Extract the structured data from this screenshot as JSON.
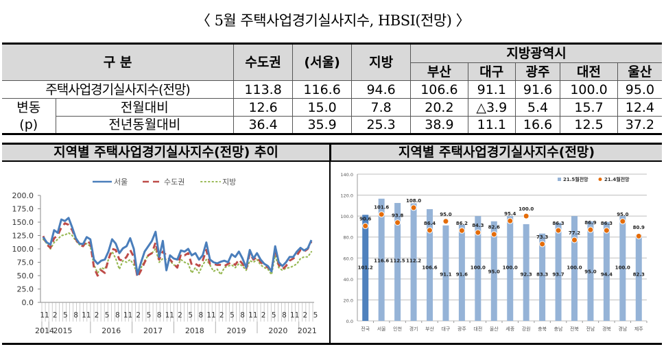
{
  "title": "〈 5월 주택사업경기실사지수, HBSI(전망) 〉",
  "table": {
    "header": {
      "category": "구    분",
      "sudo": "수도권",
      "seoul": "(서울)",
      "jibang": "지방",
      "metro_group": "지방광역시",
      "metros": [
        "부산",
        "대구",
        "광주",
        "대전",
        "울산"
      ]
    },
    "rows": [
      {
        "label": "주택사업경기실사지수(전망)",
        "values": [
          "113.8",
          "116.6",
          "94.6",
          "106.6",
          "91.1",
          "91.6",
          "100.0",
          "95.0"
        ]
      },
      {
        "group": "변동",
        "label": "전월대비",
        "values": [
          "12.6",
          "15.0",
          "7.8",
          "20.2",
          "△3.9",
          "5.4",
          "15.7",
          "12.4"
        ]
      },
      {
        "group": "(p)",
        "label": "전년동월대비",
        "values": [
          "36.4",
          "35.9",
          "25.3",
          "38.9",
          "11.1",
          "16.6",
          "12.5",
          "37.2"
        ]
      }
    ]
  },
  "colors": {
    "seoul_line": "#4a7ebb",
    "sudo_line": "#be4b48",
    "jibang_line": "#98b954",
    "bar_national": "#4f81bd",
    "bar_region": "#95b3d7",
    "dot_prev": "#e46c0a",
    "header_bg": "#d9d9d9"
  },
  "chart_data": [
    {
      "type": "line",
      "title": "지역별 주택사업경기실사지수(전망) 추이",
      "xlabel": "",
      "ylabel": "",
      "ylim": [
        0,
        200
      ],
      "yticks": [
        "0.0",
        "25.0",
        "50.0",
        "75.0",
        "100.0",
        "125.0",
        "150.0",
        "175.0",
        "200.0"
      ],
      "x_month_ticks": [
        "11",
        "2",
        "5",
        "8",
        "11",
        "2",
        "5",
        "8",
        "11",
        "2",
        "5",
        "8",
        "11",
        "2",
        "5",
        "8",
        "11",
        "2",
        "5",
        "8",
        "11",
        "2",
        "5",
        "8",
        "11",
        "2",
        "5"
      ],
      "x_year_labels": [
        "2014",
        "2015",
        "2016",
        "2017",
        "2018",
        "2019",
        "2020",
        "2021"
      ],
      "legend": [
        "서울",
        "수도권",
        "지방"
      ],
      "legend_position": "top",
      "grid": false,
      "series": [
        {
          "name": "서울",
          "style": "solid",
          "values": [
            122,
            112,
            108,
            135,
            130,
            155,
            152,
            158,
            140,
            120,
            110,
            109,
            122,
            118,
            80,
            72,
            78,
            80,
            95,
            118,
            110,
            92,
            101,
            105,
            120,
            100,
            52,
            75,
            95,
            105,
            115,
            132,
            85,
            115,
            60,
            88,
            82,
            80,
            97,
            95,
            100,
            88,
            92,
            80,
            88,
            112,
            80,
            75,
            73,
            76,
            78,
            75,
            90,
            85,
            95,
            82,
            65,
            98,
            82,
            92,
            80,
            72,
            68,
            58,
            105,
            75,
            68,
            75,
            85,
            85,
            95,
            102,
            97,
            101,
            116.6
          ]
        },
        {
          "name": "수도권",
          "style": "dashed",
          "values": [
            124,
            108,
            102,
            120,
            125,
            140,
            148,
            145,
            135,
            118,
            108,
            105,
            115,
            110,
            65,
            50,
            60,
            55,
            80,
            100,
            98,
            80,
            78,
            85,
            98,
            85,
            47,
            60,
            75,
            88,
            92,
            112,
            80,
            95,
            88,
            80,
            72,
            65,
            90,
            88,
            92,
            70,
            72,
            68,
            78,
            98,
            72,
            72,
            70,
            70,
            68,
            72,
            75,
            70,
            80,
            72,
            62,
            92,
            80,
            85,
            75,
            70,
            65,
            60,
            100,
            70,
            62,
            68,
            78,
            82,
            88,
            98,
            95,
            100,
            113.8
          ]
        },
        {
          "name": "지방",
          "style": "dotted",
          "values": [
            118,
            110,
            100,
            112,
            118,
            125,
            126,
            130,
            125,
            115,
            108,
            106,
            110,
            105,
            70,
            55,
            65,
            62,
            80,
            95,
            82,
            62,
            78,
            75,
            80,
            70,
            52,
            65,
            78,
            88,
            92,
            100,
            75,
            82,
            80,
            78,
            70,
            68,
            80,
            75,
            72,
            55,
            65,
            55,
            70,
            80,
            70,
            58,
            62,
            52,
            65,
            68,
            70,
            65,
            72,
            68,
            60,
            78,
            75,
            80,
            70,
            65,
            62,
            52,
            88,
            65,
            60,
            64,
            65,
            68,
            72,
            82,
            85,
            85,
            94.6
          ]
        }
      ]
    },
    {
      "type": "bar",
      "title": "지역별 주택사업경기실사지수(전망)",
      "xlabel": "",
      "ylabel": "",
      "ylim": [
        0,
        140
      ],
      "yticks": [
        "0.0",
        "20.0",
        "40.0",
        "60.0",
        "80.0",
        "100.0",
        "120.0",
        "140.0"
      ],
      "grid": true,
      "legend": [
        "21.5월전망",
        "21.4월전망"
      ],
      "legend_position": "top-right",
      "categories": [
        "전국",
        "서울",
        "인천",
        "경기",
        "부산",
        "대구",
        "광주",
        "대전",
        "울산",
        "세종",
        "강원",
        "충북",
        "충남",
        "전북",
        "전남",
        "경북",
        "경남",
        "제주"
      ],
      "series": [
        {
          "name": "21.5월전망",
          "type": "bar",
          "values": [
            101.2,
            116.6,
            112.5,
            112.2,
            106.6,
            91.1,
            91.6,
            100.0,
            95.0,
            100.0,
            92.3,
            83.3,
            93.7,
            100.0,
            95.0,
            94.4,
            100.0,
            82.3
          ]
        },
        {
          "name": "21.4월전망",
          "type": "scatter",
          "values": [
            90.6,
            101.6,
            93.8,
            108.0,
            86.4,
            95.0,
            86.2,
            84.3,
            82.6,
            95.4,
            100.0,
            73.3,
            86.3,
            77.2,
            86.9,
            86.3,
            95.0,
            80.9
          ]
        }
      ]
    }
  ]
}
